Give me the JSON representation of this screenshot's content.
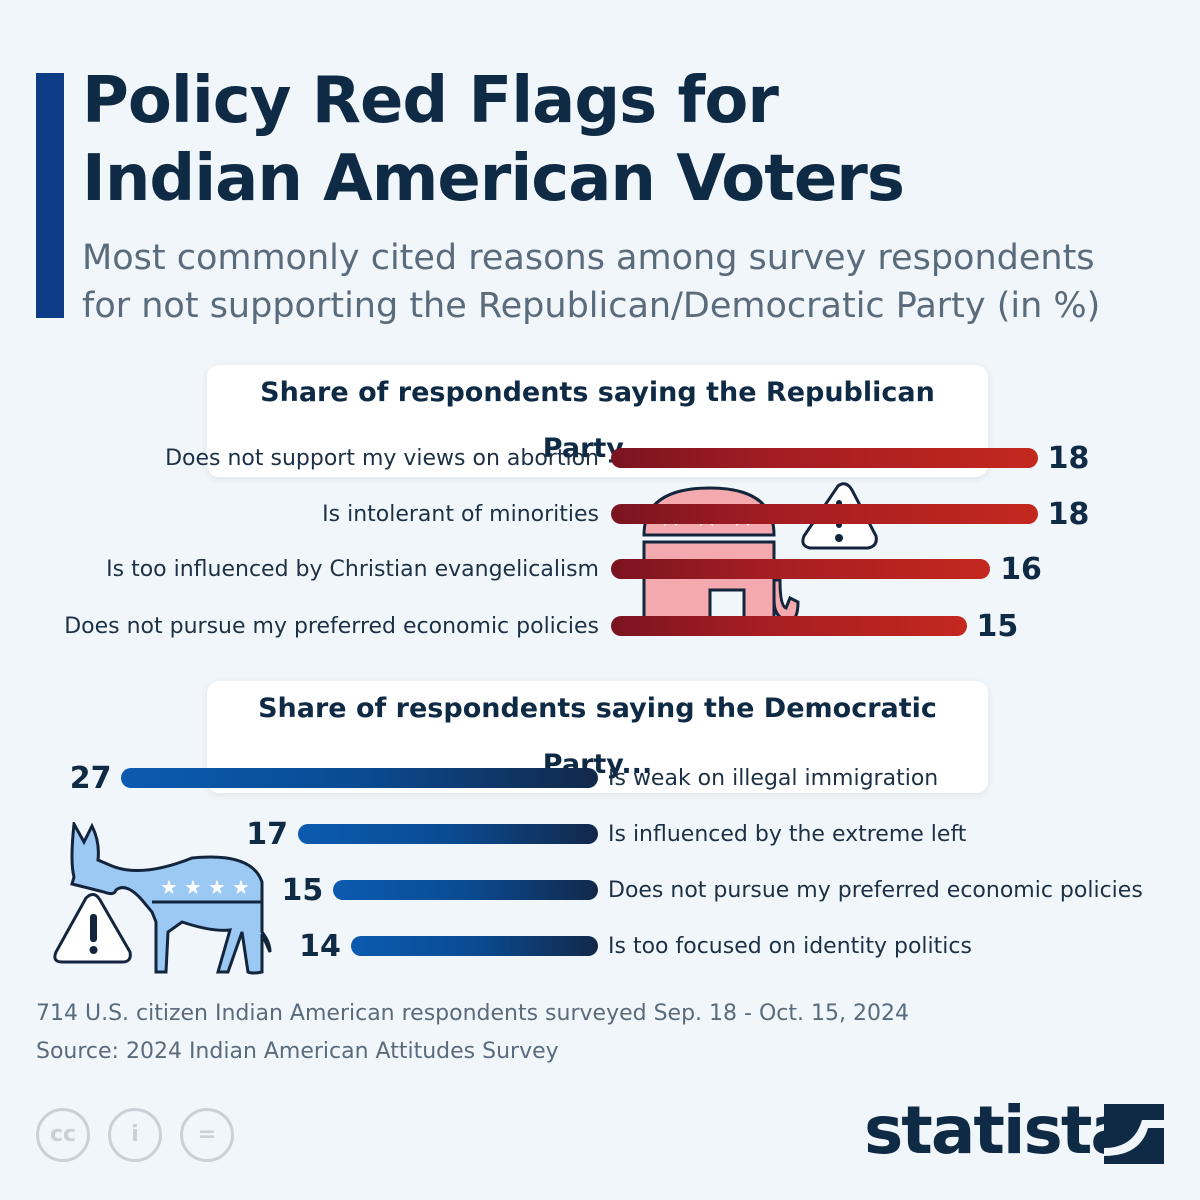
{
  "title": [
    "Policy Red Flags for",
    "Indian American Voters"
  ],
  "subtitle": [
    "Most commonly cited reasons among survey respondents",
    "for not supporting the Republican/Democratic Party (in %)"
  ],
  "colors": {
    "republican": "#b3221f",
    "democratic": "#0a4b92",
    "accent": "#0d3b86"
  },
  "chart_data": [
    {
      "type": "bar",
      "title": "Share of respondents saying the Republican Party...",
      "categories": [
        "Does not support my views on abortion",
        "Is intolerant of minorities",
        "Is too influenced by Christian evangelicalism",
        "Does not pursue my preferred economic policies"
      ],
      "values": [
        18,
        18,
        16,
        15
      ],
      "orientation": "horizontal",
      "grid": false
    },
    {
      "type": "bar",
      "title": "Share of respondents saying the Democratic Party...",
      "categories": [
        "Is weak on illegal immigration",
        "Is influenced by the extreme left",
        "Does not pursue my preferred economic policies",
        "Is too focused on identity politics"
      ],
      "values": [
        27,
        17,
        15,
        14
      ],
      "orientation": "horizontal-reversed",
      "grid": false
    }
  ],
  "footer": {
    "note": "714 U.S. citizen Indian American respondents surveyed Sep. 18 - Oct. 15, 2024",
    "source": "Source: 2024 Indian American Attitudes Survey"
  },
  "license_icons": [
    "cc-icon",
    "attribution-icon",
    "no-derivatives-icon"
  ],
  "brand": "statista"
}
